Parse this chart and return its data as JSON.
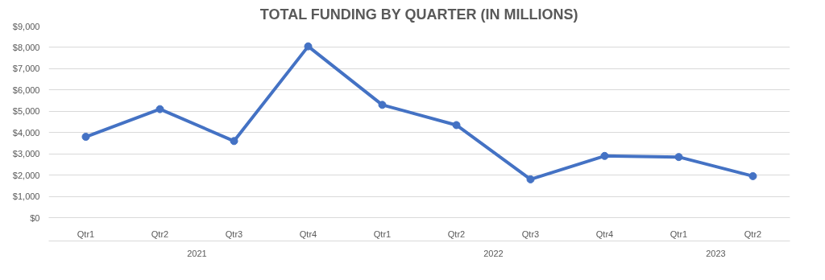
{
  "chart_data": {
    "type": "line",
    "title": "TOTAL FUNDING BY QUARTER (IN MILLIONS)",
    "categories": [
      "Qtr1",
      "Qtr2",
      "Qtr3",
      "Qtr4",
      "Qtr1",
      "Qtr2",
      "Qtr3",
      "Qtr4",
      "Qtr1",
      "Qtr2"
    ],
    "annotations": [
      "2021",
      "2022",
      "2023"
    ],
    "series": [
      {
        "color": "#4472c4",
        "values": [
          3800,
          5100,
          3600,
          8050,
          5300,
          4350,
          1800,
          2900,
          2850,
          1950
        ]
      }
    ],
    "ylim": [
      0,
      9000
    ],
    "yticks": [
      {
        "value": 0,
        "label": "$0"
      },
      {
        "value": 1000,
        "label": "$1,000"
      },
      {
        "value": 2000,
        "label": "$2,000"
      },
      {
        "value": 3000,
        "label": "$3,000"
      },
      {
        "value": 4000,
        "label": "$4,000"
      },
      {
        "value": 5000,
        "label": "$5,000"
      },
      {
        "value": 6000,
        "label": "$6,000"
      },
      {
        "value": 7000,
        "label": "$7,000"
      },
      {
        "value": 8000,
        "label": "$8,000"
      },
      {
        "value": 9000,
        "label": "$9,000"
      }
    ],
    "grid": "y",
    "marker": "circle"
  }
}
